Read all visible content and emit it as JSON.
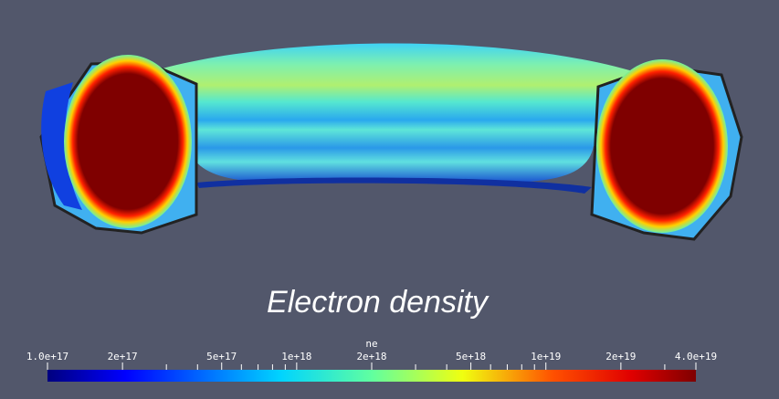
{
  "title": "Electron density",
  "colorbar": {
    "title": "ne",
    "scale": "log",
    "range": [
      1e+17,
      4e+19
    ],
    "ticks": [
      {
        "value": 1e+17,
        "label": "1.0e+17"
      },
      {
        "value": 2e+17,
        "label": "2e+17"
      },
      {
        "value": 5e+17,
        "label": "5e+17"
      },
      {
        "value": 1e+18,
        "label": "1e+18"
      },
      {
        "value": 2e+18,
        "label": "2e+18"
      },
      {
        "value": 5e+18,
        "label": "5e+18"
      },
      {
        "value": 1e+19,
        "label": "1e+19"
      },
      {
        "value": 2e+19,
        "label": "2e+19"
      },
      {
        "value": 4e+19,
        "label": "4.0e+19"
      }
    ],
    "minor_ticks": [
      3e+17,
      4e+17,
      6e+17,
      7e+17,
      8e+17,
      9e+17,
      3e+18,
      4e+18,
      6e+18,
      7e+18,
      8e+18,
      9e+18,
      3e+19
    ]
  }
}
